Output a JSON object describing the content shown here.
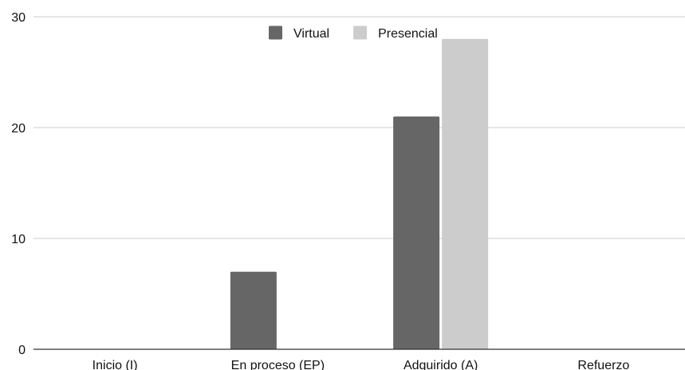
{
  "chart_data": {
    "type": "bar",
    "categories": [
      "Inicio (I)",
      "En proceso (EP)",
      "Adquirido (A)",
      "Refuerzo"
    ],
    "series": [
      {
        "name": "Virtual",
        "values": [
          0,
          7,
          21,
          0
        ],
        "color": "#666666"
      },
      {
        "name": "Presencial",
        "values": [
          0,
          0,
          28,
          0
        ],
        "color": "#cccccc"
      }
    ],
    "yticks": [
      0,
      10,
      20,
      30
    ],
    "ylim": [
      0,
      30
    ],
    "grid": true,
    "legend_position": "top-center",
    "title": "",
    "xlabel": "",
    "ylabel": ""
  }
}
